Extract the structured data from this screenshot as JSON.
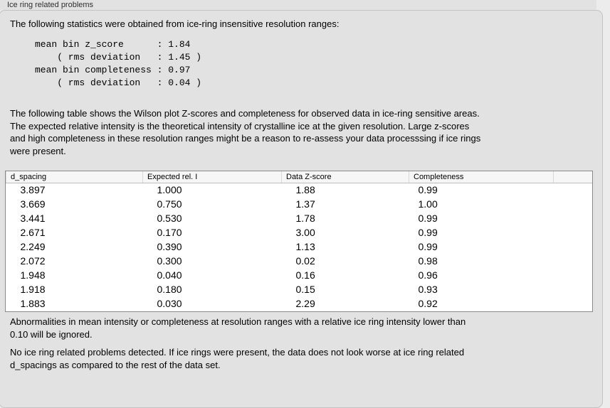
{
  "panel": {
    "title": "Ice ring related problems"
  },
  "intro": {
    "text": "The following statistics were obtained from ice-ring insensitive resolution ranges:",
    "stats_block": "mean bin z_score      : 1.84\n    ( rms deviation   : 1.45 )\nmean bin completeness : 0.97\n    ( rms deviation   : 0.04 )"
  },
  "description": {
    "text": "The following table shows the Wilson plot Z-scores and completeness for observed data in ice-ring sensitive areas.\nThe expected relative intensity is the theoretical intensity of crystalline ice at the given resolution. Large z-scores\nand high completeness in these resolution ranges might be a reason to re-assess your data processsing if ice rings\nwere present."
  },
  "table": {
    "columns": [
      "d_spacing",
      "Expected rel. I",
      "Data Z-score",
      "Completeness"
    ],
    "rows": [
      [
        "3.897",
        "1.000",
        "1.88",
        "0.99"
      ],
      [
        "3.669",
        "0.750",
        "1.37",
        "1.00"
      ],
      [
        "3.441",
        "0.530",
        "1.78",
        "0.99"
      ],
      [
        "2.671",
        "0.170",
        "3.00",
        "0.99"
      ],
      [
        "2.249",
        "0.390",
        "1.13",
        "0.99"
      ],
      [
        "2.072",
        "0.300",
        "0.02",
        "0.98"
      ],
      [
        "1.948",
        "0.040",
        "0.16",
        "0.96"
      ],
      [
        "1.918",
        "0.180",
        "0.15",
        "0.93"
      ],
      [
        "1.883",
        "0.030",
        "2.29",
        "0.92"
      ]
    ]
  },
  "footer": {
    "note1": "Abnormalities in mean intensity or completeness at resolution ranges with a relative ice ring intensity lower than\n0.10 will be ignored.",
    "note2": "No ice ring related problems detected. If ice rings were present, the data does not look worse at ice ring related\nd_spacings as compared to the rest of the data set."
  }
}
